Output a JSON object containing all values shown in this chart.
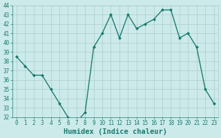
{
  "x": [
    0,
    1,
    2,
    3,
    4,
    5,
    6,
    7,
    8,
    9,
    10,
    11,
    12,
    13,
    14,
    15,
    16,
    17,
    18,
    19,
    20,
    21,
    22,
    23
  ],
  "y": [
    38.5,
    37.5,
    36.5,
    36.5,
    35.0,
    33.5,
    32.0,
    31.5,
    32.5,
    39.5,
    41.0,
    43.0,
    40.5,
    43.0,
    41.5,
    42.0,
    42.5,
    43.5,
    43.5,
    40.5,
    41.0,
    39.5,
    35.0,
    33.5
  ],
  "line_color": "#1a7a6e",
  "marker": "D",
  "marker_size": 2.0,
  "bg_color": "#cceaea",
  "grid_color": "#aacccc",
  "xlabel": "Humidex (Indice chaleur)",
  "ylim": [
    32,
    44
  ],
  "xlim": [
    -0.5,
    23.5
  ],
  "yticks": [
    32,
    33,
    34,
    35,
    36,
    37,
    38,
    39,
    40,
    41,
    42,
    43,
    44
  ],
  "xticks": [
    0,
    1,
    2,
    3,
    4,
    5,
    6,
    7,
    8,
    9,
    10,
    11,
    12,
    13,
    14,
    15,
    16,
    17,
    18,
    19,
    20,
    21,
    22,
    23
  ],
  "tick_label_size": 5.5,
  "xlabel_size": 7.5,
  "linewidth": 1.0
}
